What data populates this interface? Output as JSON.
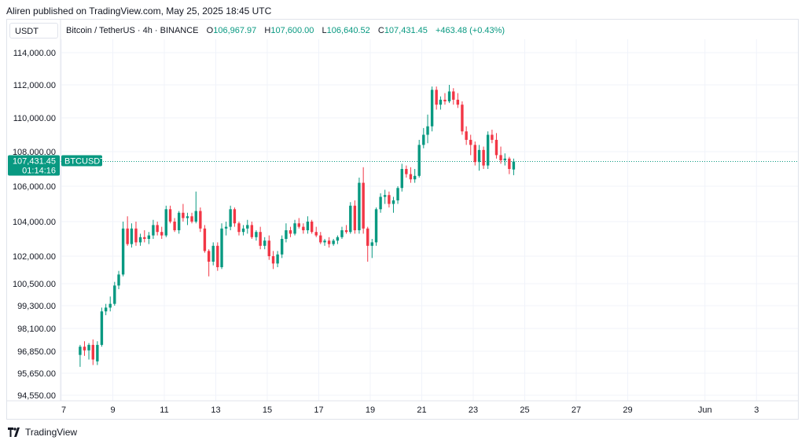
{
  "header": {
    "published_text": "Aliren published on TradingView.com, May 25, 2025 18:45 UTC"
  },
  "quote_currency": "USDT",
  "legend": {
    "symbol_text": "Bitcoin / TetherUS · 4h · BINANCE",
    "open_label": "O",
    "open_value": "106,967.97",
    "high_label": "H",
    "high_value": "107,600.00",
    "low_label": "L",
    "low_value": "106,640.52",
    "close_label": "C",
    "close_value": "107,431.45",
    "change_value": "+463.48 (+0.43%)"
  },
  "price_tag": {
    "price": "107,431.45",
    "countdown": "01:14:16",
    "symbol": "BTCUSDT"
  },
  "footer": {
    "brand": "TradingView"
  },
  "colors": {
    "up": "#089981",
    "down": "#f23645",
    "grid": "#f0f3fa",
    "axis_text": "#131722",
    "price_line": "#089981"
  },
  "chart_data": {
    "type": "candlestick",
    "title": "Bitcoin / TetherUS · 4h · BINANCE",
    "current_price": 107431.45,
    "y_ticks": [
      {
        "value": 114000,
        "label": "114,000.00"
      },
      {
        "value": 112000,
        "label": "112,000.00"
      },
      {
        "value": 110000,
        "label": "110,000.00"
      },
      {
        "value": 108000,
        "label": "108,000.00"
      },
      {
        "value": 106000,
        "label": "106,000.00"
      },
      {
        "value": 104000,
        "label": "104,000.00"
      },
      {
        "value": 102000,
        "label": "102,000.00"
      },
      {
        "value": 100500,
        "label": "100,500.00"
      },
      {
        "value": 99300,
        "label": "99,300.00"
      },
      {
        "value": 98100,
        "label": "98,100.00"
      },
      {
        "value": 96850,
        "label": "96,850.00"
      },
      {
        "value": 95650,
        "label": "95,650.00"
      },
      {
        "value": 94550,
        "label": "94,550.00"
      }
    ],
    "x_ticks": [
      {
        "day": 7,
        "label": "7"
      },
      {
        "day": 9,
        "label": "9"
      },
      {
        "day": 11,
        "label": "11"
      },
      {
        "day": 13,
        "label": "13"
      },
      {
        "day": 15,
        "label": "15"
      },
      {
        "day": 17,
        "label": "17"
      },
      {
        "day": 19,
        "label": "19"
      },
      {
        "day": 21,
        "label": "21"
      },
      {
        "day": 23,
        "label": "23"
      },
      {
        "day": 25,
        "label": "25"
      },
      {
        "day": 27,
        "label": "27"
      },
      {
        "day": 29,
        "label": "29"
      },
      {
        "day": 32,
        "label": "Jun"
      },
      {
        "day": 34,
        "label": "3"
      }
    ],
    "candles": [
      {
        "t": 7.73,
        "o": 96650,
        "h": 97200,
        "l": 96000,
        "c": 97100
      },
      {
        "t": 7.9,
        "o": 97100,
        "h": 97400,
        "l": 96600,
        "c": 96900
      },
      {
        "t": 8.07,
        "o": 96900,
        "h": 97300,
        "l": 96400,
        "c": 97200
      },
      {
        "t": 8.23,
        "o": 97200,
        "h": 97500,
        "l": 96100,
        "c": 96400
      },
      {
        "t": 8.4,
        "o": 96300,
        "h": 97400,
        "l": 96100,
        "c": 97200
      },
      {
        "t": 8.57,
        "o": 97200,
        "h": 99200,
        "l": 97100,
        "c": 99000
      },
      {
        "t": 8.73,
        "o": 99000,
        "h": 99400,
        "l": 98800,
        "c": 99200
      },
      {
        "t": 8.9,
        "o": 99200,
        "h": 99800,
        "l": 99000,
        "c": 99400
      },
      {
        "t": 9.07,
        "o": 99400,
        "h": 100600,
        "l": 99300,
        "c": 100400
      },
      {
        "t": 9.23,
        "o": 100400,
        "h": 101200,
        "l": 100200,
        "c": 101000
      },
      {
        "t": 9.4,
        "o": 101000,
        "h": 104000,
        "l": 100900,
        "c": 103600
      },
      {
        "t": 9.57,
        "o": 103600,
        "h": 104300,
        "l": 102600,
        "c": 102700
      },
      {
        "t": 9.73,
        "o": 102700,
        "h": 103900,
        "l": 102500,
        "c": 103600
      },
      {
        "t": 9.9,
        "o": 103600,
        "h": 104000,
        "l": 102600,
        "c": 102800
      },
      {
        "t": 10.07,
        "o": 102800,
        "h": 103300,
        "l": 102600,
        "c": 103100
      },
      {
        "t": 10.23,
        "o": 103100,
        "h": 103500,
        "l": 102800,
        "c": 103000
      },
      {
        "t": 10.4,
        "o": 103000,
        "h": 103400,
        "l": 102700,
        "c": 103200
      },
      {
        "t": 10.57,
        "o": 103200,
        "h": 104100,
        "l": 103000,
        "c": 103800
      },
      {
        "t": 10.73,
        "o": 103800,
        "h": 104000,
        "l": 103200,
        "c": 103400
      },
      {
        "t": 10.9,
        "o": 103400,
        "h": 103700,
        "l": 103000,
        "c": 103200
      },
      {
        "t": 11.07,
        "o": 103200,
        "h": 104900,
        "l": 103100,
        "c": 104700
      },
      {
        "t": 11.23,
        "o": 104700,
        "h": 104900,
        "l": 103900,
        "c": 104000
      },
      {
        "t": 11.4,
        "o": 104000,
        "h": 104200,
        "l": 103400,
        "c": 103500
      },
      {
        "t": 11.57,
        "o": 103500,
        "h": 104600,
        "l": 103300,
        "c": 104500
      },
      {
        "t": 11.73,
        "o": 104500,
        "h": 105000,
        "l": 104000,
        "c": 104200
      },
      {
        "t": 11.9,
        "o": 104200,
        "h": 104500,
        "l": 103800,
        "c": 104300
      },
      {
        "t": 12.07,
        "o": 104300,
        "h": 104500,
        "l": 103900,
        "c": 104000
      },
      {
        "t": 12.23,
        "o": 104000,
        "h": 105700,
        "l": 103900,
        "c": 104600
      },
      {
        "t": 12.4,
        "o": 104600,
        "h": 104800,
        "l": 103400,
        "c": 103600
      },
      {
        "t": 12.57,
        "o": 103600,
        "h": 103800,
        "l": 102200,
        "c": 102300
      },
      {
        "t": 12.73,
        "o": 102300,
        "h": 102400,
        "l": 100900,
        "c": 101700
      },
      {
        "t": 12.9,
        "o": 101700,
        "h": 102800,
        "l": 101500,
        "c": 102600
      },
      {
        "t": 13.07,
        "o": 102600,
        "h": 102800,
        "l": 101200,
        "c": 101400
      },
      {
        "t": 13.23,
        "o": 101400,
        "h": 103900,
        "l": 101300,
        "c": 103600
      },
      {
        "t": 13.4,
        "o": 103600,
        "h": 104000,
        "l": 103200,
        "c": 103700
      },
      {
        "t": 13.57,
        "o": 103700,
        "h": 104900,
        "l": 103500,
        "c": 104700
      },
      {
        "t": 13.73,
        "o": 104700,
        "h": 104800,
        "l": 103700,
        "c": 103900
      },
      {
        "t": 13.9,
        "o": 103900,
        "h": 104000,
        "l": 103200,
        "c": 103400
      },
      {
        "t": 14.07,
        "o": 103400,
        "h": 103800,
        "l": 103200,
        "c": 103600
      },
      {
        "t": 14.23,
        "o": 103600,
        "h": 104100,
        "l": 103300,
        "c": 103800
      },
      {
        "t": 14.4,
        "o": 103800,
        "h": 104000,
        "l": 103000,
        "c": 103100
      },
      {
        "t": 14.57,
        "o": 103100,
        "h": 103500,
        "l": 102900,
        "c": 103400
      },
      {
        "t": 14.73,
        "o": 103400,
        "h": 103700,
        "l": 102400,
        "c": 102600
      },
      {
        "t": 14.9,
        "o": 102600,
        "h": 103100,
        "l": 102400,
        "c": 102900
      },
      {
        "t": 15.07,
        "o": 102900,
        "h": 103200,
        "l": 101800,
        "c": 102000
      },
      {
        "t": 15.23,
        "o": 102000,
        "h": 102300,
        "l": 101300,
        "c": 101600
      },
      {
        "t": 15.4,
        "o": 101600,
        "h": 102300,
        "l": 101400,
        "c": 102100
      },
      {
        "t": 15.57,
        "o": 102100,
        "h": 103200,
        "l": 101900,
        "c": 103000
      },
      {
        "t": 15.73,
        "o": 103000,
        "h": 103900,
        "l": 102800,
        "c": 103500
      },
      {
        "t": 15.9,
        "o": 103500,
        "h": 103700,
        "l": 103100,
        "c": 103300
      },
      {
        "t": 16.07,
        "o": 103300,
        "h": 104100,
        "l": 103200,
        "c": 103900
      },
      {
        "t": 16.23,
        "o": 103900,
        "h": 104200,
        "l": 103600,
        "c": 103700
      },
      {
        "t": 16.4,
        "o": 103700,
        "h": 103900,
        "l": 103300,
        "c": 103500
      },
      {
        "t": 16.57,
        "o": 103500,
        "h": 104300,
        "l": 103300,
        "c": 104000
      },
      {
        "t": 16.73,
        "o": 104000,
        "h": 104100,
        "l": 103300,
        "c": 103400
      },
      {
        "t": 16.9,
        "o": 103400,
        "h": 103700,
        "l": 103100,
        "c": 103200
      },
      {
        "t": 17.07,
        "o": 103200,
        "h": 103400,
        "l": 102700,
        "c": 102800
      },
      {
        "t": 17.23,
        "o": 102800,
        "h": 103000,
        "l": 102600,
        "c": 102900
      },
      {
        "t": 17.4,
        "o": 102900,
        "h": 103100,
        "l": 102500,
        "c": 102700
      },
      {
        "t": 17.57,
        "o": 102700,
        "h": 103000,
        "l": 102600,
        "c": 102900
      },
      {
        "t": 17.73,
        "o": 102900,
        "h": 103200,
        "l": 102700,
        "c": 103100
      },
      {
        "t": 17.9,
        "o": 103100,
        "h": 103700,
        "l": 103000,
        "c": 103500
      },
      {
        "t": 18.07,
        "o": 103500,
        "h": 103800,
        "l": 103300,
        "c": 103400
      },
      {
        "t": 18.23,
        "o": 103400,
        "h": 105100,
        "l": 103300,
        "c": 104900
      },
      {
        "t": 18.4,
        "o": 104900,
        "h": 105200,
        "l": 103300,
        "c": 103500
      },
      {
        "t": 18.57,
        "o": 103500,
        "h": 106500,
        "l": 103300,
        "c": 106200
      },
      {
        "t": 18.73,
        "o": 106200,
        "h": 107100,
        "l": 103300,
        "c": 103600
      },
      {
        "t": 18.9,
        "o": 103600,
        "h": 103700,
        "l": 101700,
        "c": 102600
      },
      {
        "t": 19.07,
        "o": 102600,
        "h": 103000,
        "l": 101900,
        "c": 102800
      },
      {
        "t": 19.23,
        "o": 102800,
        "h": 104800,
        "l": 102600,
        "c": 104700
      },
      {
        "t": 19.4,
        "o": 104700,
        "h": 105600,
        "l": 104500,
        "c": 105400
      },
      {
        "t": 19.57,
        "o": 105400,
        "h": 105800,
        "l": 105000,
        "c": 105500
      },
      {
        "t": 19.73,
        "o": 105500,
        "h": 105700,
        "l": 104800,
        "c": 105000
      },
      {
        "t": 19.9,
        "o": 105000,
        "h": 105400,
        "l": 104500,
        "c": 105200
      },
      {
        "t": 20.07,
        "o": 105200,
        "h": 106000,
        "l": 105000,
        "c": 105900
      },
      {
        "t": 20.23,
        "o": 105900,
        "h": 107300,
        "l": 105700,
        "c": 107000
      },
      {
        "t": 20.4,
        "o": 107000,
        "h": 107200,
        "l": 106500,
        "c": 106700
      },
      {
        "t": 20.57,
        "o": 106700,
        "h": 107100,
        "l": 106200,
        "c": 106400
      },
      {
        "t": 20.73,
        "o": 106400,
        "h": 107000,
        "l": 106200,
        "c": 106600
      },
      {
        "t": 20.9,
        "o": 106600,
        "h": 108700,
        "l": 106500,
        "c": 108400
      },
      {
        "t": 21.07,
        "o": 108400,
        "h": 109400,
        "l": 108200,
        "c": 109000
      },
      {
        "t": 21.23,
        "o": 109000,
        "h": 110200,
        "l": 108500,
        "c": 109500
      },
      {
        "t": 21.4,
        "o": 109500,
        "h": 111900,
        "l": 109200,
        "c": 111700
      },
      {
        "t": 21.57,
        "o": 111700,
        "h": 111900,
        "l": 110500,
        "c": 110800
      },
      {
        "t": 21.73,
        "o": 110800,
        "h": 111300,
        "l": 110500,
        "c": 111100
      },
      {
        "t": 21.9,
        "o": 111100,
        "h": 111500,
        "l": 110800,
        "c": 111000
      },
      {
        "t": 22.07,
        "o": 111000,
        "h": 112000,
        "l": 110900,
        "c": 111600
      },
      {
        "t": 22.23,
        "o": 111600,
        "h": 111800,
        "l": 110800,
        "c": 111100
      },
      {
        "t": 22.4,
        "o": 111100,
        "h": 111500,
        "l": 110600,
        "c": 110800
      },
      {
        "t": 22.57,
        "o": 110800,
        "h": 111000,
        "l": 109000,
        "c": 109200
      },
      {
        "t": 22.73,
        "o": 109200,
        "h": 109500,
        "l": 108400,
        "c": 108700
      },
      {
        "t": 22.9,
        "o": 108700,
        "h": 109000,
        "l": 107800,
        "c": 108400
      },
      {
        "t": 23.07,
        "o": 108400,
        "h": 108600,
        "l": 107200,
        "c": 107400
      },
      {
        "t": 23.23,
        "o": 107400,
        "h": 108400,
        "l": 106900,
        "c": 108100
      },
      {
        "t": 23.4,
        "o": 108100,
        "h": 108300,
        "l": 107000,
        "c": 107200
      },
      {
        "t": 23.57,
        "o": 107200,
        "h": 109200,
        "l": 107000,
        "c": 109000
      },
      {
        "t": 23.73,
        "o": 109000,
        "h": 109300,
        "l": 108500,
        "c": 108700
      },
      {
        "t": 23.9,
        "o": 108700,
        "h": 109100,
        "l": 107600,
        "c": 107800
      },
      {
        "t": 24.07,
        "o": 107800,
        "h": 108300,
        "l": 107300,
        "c": 107500
      },
      {
        "t": 24.23,
        "o": 107500,
        "h": 107900,
        "l": 107200,
        "c": 107600
      },
      {
        "t": 24.4,
        "o": 107600,
        "h": 107700,
        "l": 106700,
        "c": 107000
      },
      {
        "t": 24.57,
        "o": 106967.97,
        "h": 107600,
        "l": 106640.52,
        "c": 107431.45
      }
    ]
  }
}
